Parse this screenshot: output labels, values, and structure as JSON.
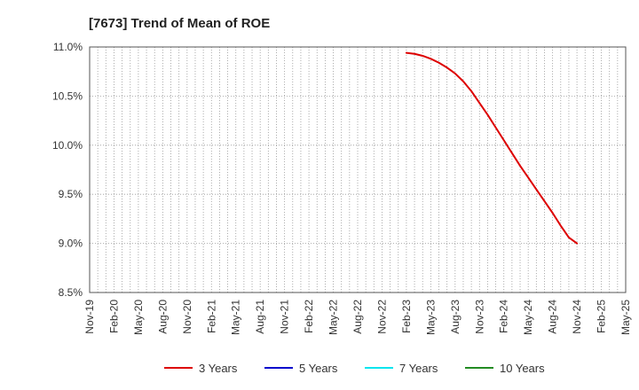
{
  "chart_data": {
    "type": "line",
    "title": "[7673]  Trend of Mean of ROE",
    "xlabel": "",
    "ylabel": "",
    "x_tick_labels": [
      "Nov-19",
      "Feb-20",
      "May-20",
      "Aug-20",
      "Nov-20",
      "Feb-21",
      "May-21",
      "Aug-21",
      "Nov-21",
      "Feb-22",
      "May-22",
      "Aug-22",
      "Nov-22",
      "Feb-23",
      "May-23",
      "Aug-23",
      "Nov-23",
      "Feb-24",
      "May-24",
      "Aug-24",
      "Nov-24",
      "Feb-25",
      "May-25"
    ],
    "y_tick_labels": [
      "11.0%",
      "10.5%",
      "10.0%",
      "9.5%",
      "9.0%",
      "8.5%"
    ],
    "ylim": [
      8.5,
      11.0
    ],
    "y_unit": "%",
    "grid": true,
    "legend_position": "bottom",
    "series": [
      {
        "name": "3 Years",
        "color": "#dd0000",
        "x": [
          "Feb-23",
          "Mar-23",
          "Apr-23",
          "May-23",
          "Jun-23",
          "Jul-23",
          "Aug-23",
          "Sep-23",
          "Oct-23",
          "Nov-23",
          "Dec-23",
          "Jan-24",
          "Feb-24",
          "Mar-24",
          "Apr-24",
          "May-24",
          "Jun-24",
          "Jul-24",
          "Aug-24",
          "Sep-24",
          "Oct-24",
          "Nov-24"
        ],
        "values": [
          10.94,
          10.93,
          10.91,
          10.88,
          10.84,
          10.79,
          10.73,
          10.65,
          10.55,
          10.43,
          10.31,
          10.18,
          10.05,
          9.92,
          9.79,
          9.67,
          9.55,
          9.43,
          9.31,
          9.18,
          9.06,
          9.0
        ]
      },
      {
        "name": "5 Years",
        "color": "#0000cc",
        "x": [],
        "values": []
      },
      {
        "name": "7 Years",
        "color": "#00e5ee",
        "x": [],
        "values": []
      },
      {
        "name": "10 Years",
        "color": "#228b22",
        "x": [],
        "values": []
      }
    ]
  }
}
